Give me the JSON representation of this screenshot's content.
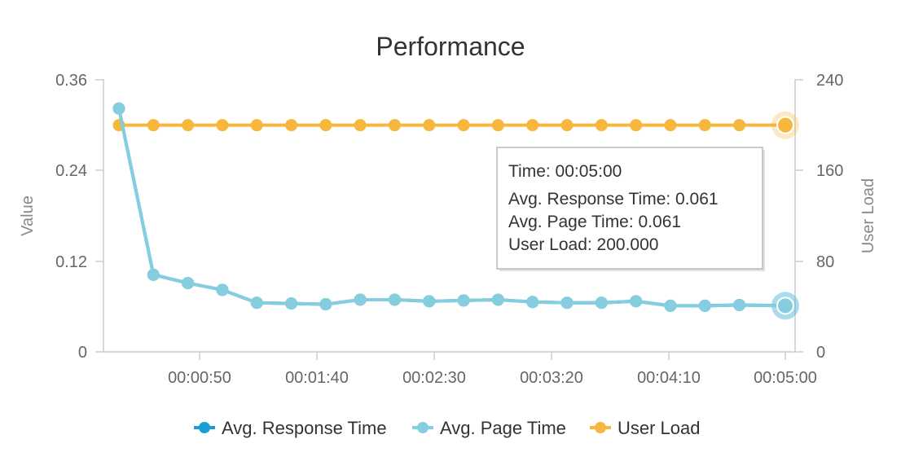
{
  "chart_data": {
    "type": "line",
    "title": "Performance",
    "xlabel": "",
    "ylabel": "Value",
    "y2label": "User Load",
    "x_ticks": [
      "00:00:50",
      "00:01:40",
      "00:02:30",
      "00:03:20",
      "00:04:10",
      "00:05:00"
    ],
    "y_ticks": [
      "0",
      "0.12",
      "0.24",
      "0.36"
    ],
    "y2_ticks": [
      "0",
      "80",
      "160",
      "240"
    ],
    "ylim": [
      0,
      0.36
    ],
    "y2lim": [
      0,
      240
    ],
    "grid": false,
    "legend_position": "bottom",
    "x": [
      "00:00:10",
      "00:00:25",
      "00:00:40",
      "00:00:55",
      "00:01:10",
      "00:01:25",
      "00:01:40",
      "00:01:55",
      "00:02:10",
      "00:02:25",
      "00:02:40",
      "00:02:55",
      "00:03:10",
      "00:03:25",
      "00:03:40",
      "00:03:55",
      "00:04:10",
      "00:04:25",
      "00:04:40",
      "00:05:00"
    ],
    "series": [
      {
        "name": "Avg. Response Time",
        "axis": "left",
        "color": "#1a9ed6",
        "values": [
          0.322,
          0.102,
          0.091,
          0.082,
          0.065,
          0.064,
          0.063,
          0.069,
          0.069,
          0.067,
          0.068,
          0.069,
          0.066,
          0.065,
          0.065,
          0.067,
          0.061,
          0.061,
          0.062,
          0.061
        ]
      },
      {
        "name": "Avg. Page Time",
        "axis": "left",
        "color": "#86cde0",
        "values": [
          0.322,
          0.102,
          0.091,
          0.082,
          0.065,
          0.064,
          0.063,
          0.069,
          0.069,
          0.067,
          0.068,
          0.069,
          0.066,
          0.065,
          0.065,
          0.067,
          0.061,
          0.061,
          0.062,
          0.061
        ]
      },
      {
        "name": "User Load",
        "axis": "right",
        "color": "#f6b73c",
        "values": [
          200,
          200,
          200,
          200,
          200,
          200,
          200,
          200,
          200,
          200,
          200,
          200,
          200,
          200,
          200,
          200,
          200,
          200,
          200,
          200
        ]
      }
    ],
    "highlighted_index": 19,
    "tooltip": {
      "lines": [
        "Time: 00:05:00",
        "Avg. Response Time: 0.061",
        "Avg. Page Time: 0.061",
        "User Load: 200.000"
      ]
    }
  },
  "colors": {
    "axis": "#cccccc",
    "text": "#333333",
    "tick": "#666666",
    "axis_title": "#888888"
  }
}
